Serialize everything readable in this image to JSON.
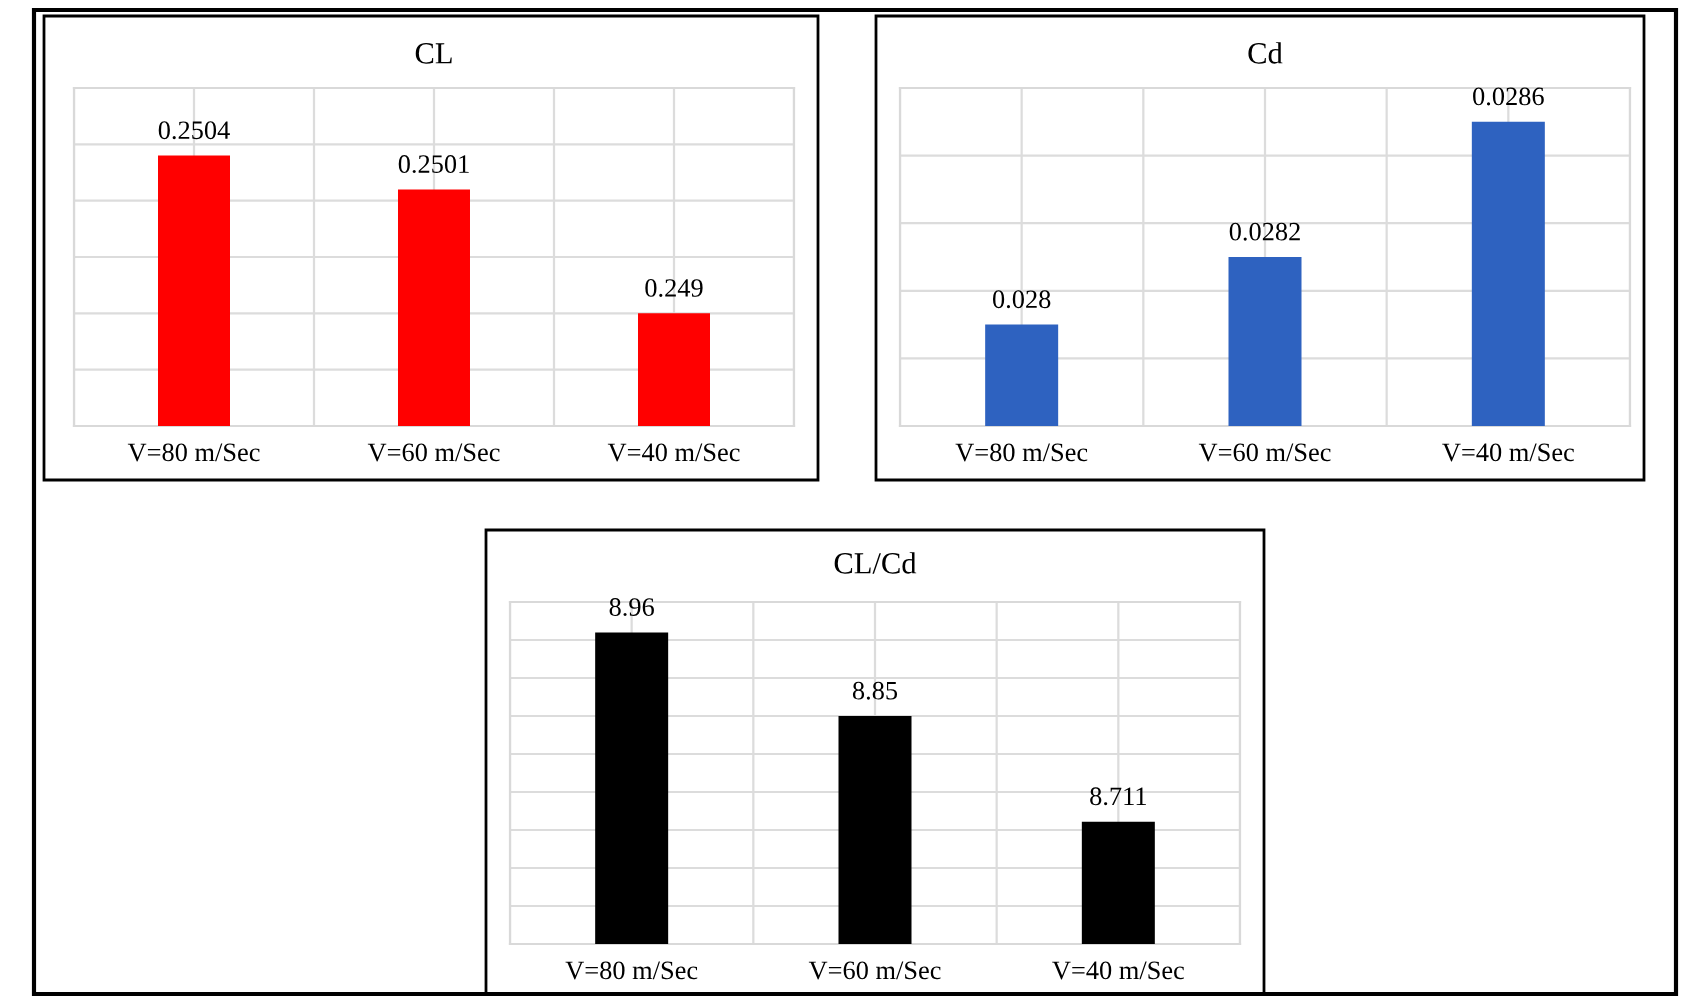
{
  "chart_data": [
    {
      "type": "bar",
      "title": "CL",
      "categories": [
        "V=80 m/Sec",
        "V=60 m/Sec",
        "V=40 m/Sec"
      ],
      "values": [
        0.2504,
        0.2501,
        0.249
      ],
      "color": "#ff0000",
      "data_labels": true,
      "ylim": [
        0.248,
        0.251
      ],
      "yticks": [
        {
          "value": 0.248,
          "label": null
        },
        {
          "value": 0.2485,
          "label": null
        },
        {
          "value": 0.249,
          "label": null
        },
        {
          "value": 0.2495,
          "label": null
        },
        {
          "value": 0.25,
          "label": null
        },
        {
          "value": 0.2505,
          "label": null
        },
        {
          "value": 0.251,
          "label": null
        }
      ],
      "grid": true,
      "tick_labels": "x"
    },
    {
      "type": "bar",
      "title": "Cd",
      "categories": [
        "V=80 m/Sec",
        "V=60 m/Sec",
        "V=40 m/Sec"
      ],
      "values": [
        0.028,
        0.0282,
        0.0286
      ],
      "color": "#2e62c0",
      "data_labels": true,
      "ylim": [
        0.0277,
        0.0287
      ],
      "yticks": [
        {
          "value": 0.0277,
          "label": null
        },
        {
          "value": 0.0279,
          "label": null
        },
        {
          "value": 0.0281,
          "label": null
        },
        {
          "value": 0.0283,
          "label": null
        },
        {
          "value": 0.0285,
          "label": null
        },
        {
          "value": 0.0287,
          "label": null
        }
      ],
      "grid": true,
      "tick_labels": "x"
    },
    {
      "type": "bar",
      "title": "CL/Cd",
      "categories": [
        "V=80 m/Sec",
        "V=60 m/Sec",
        "V=40 m/Sec"
      ],
      "values": [
        8.96,
        8.85,
        8.711
      ],
      "color": "#000000",
      "data_labels": true,
      "ylim": [
        8.55,
        9.0
      ],
      "yticks": [
        {
          "value": 8.55,
          "label": null
        },
        {
          "value": 8.6,
          "label": null
        },
        {
          "value": 8.65,
          "label": null
        },
        {
          "value": 8.7,
          "label": null
        },
        {
          "value": 8.75,
          "label": null
        },
        {
          "value": 8.8,
          "label": null
        },
        {
          "value": 8.85,
          "label": null
        },
        {
          "value": 8.9,
          "label": null
        },
        {
          "value": 8.95,
          "label": null
        },
        {
          "value": 9.0,
          "label": null
        }
      ],
      "grid": true,
      "tick_labels": "x"
    }
  ]
}
